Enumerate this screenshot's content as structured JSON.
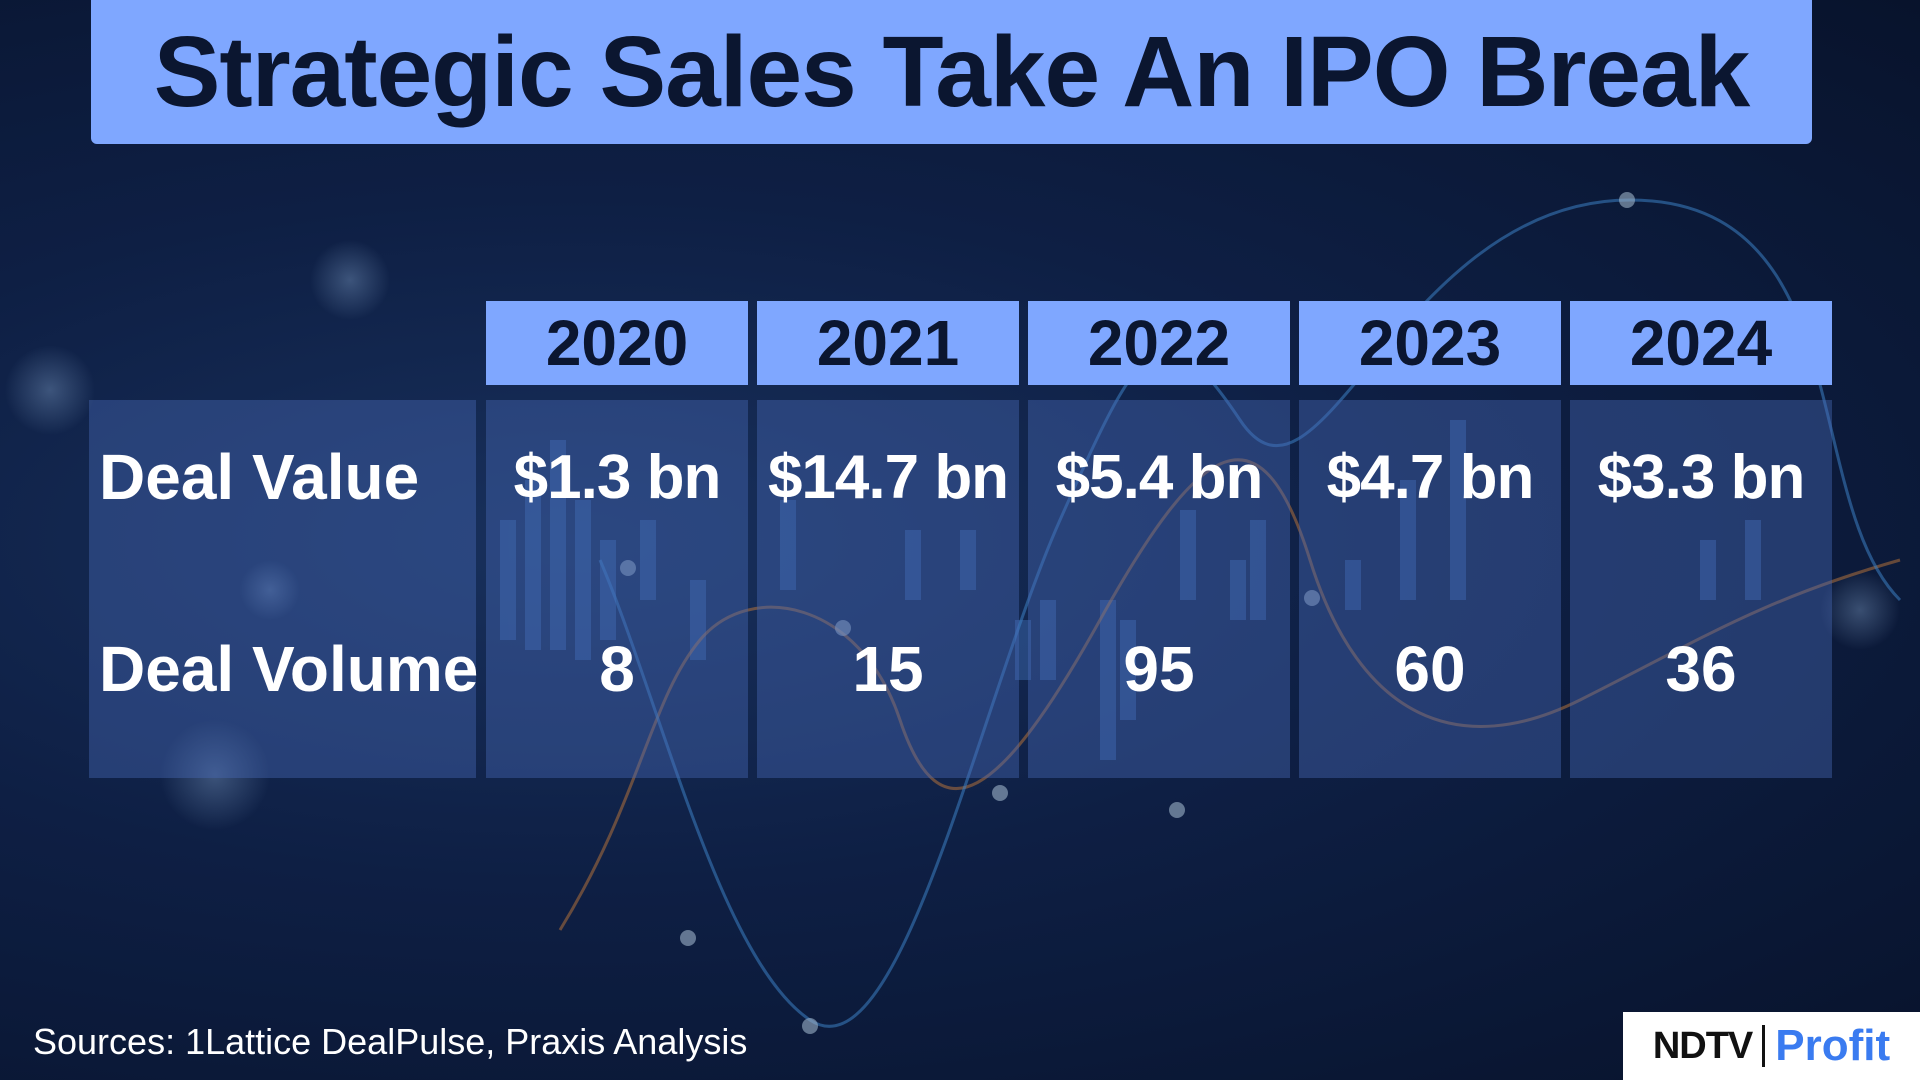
{
  "title": "Strategic Sales Take An IPO Break",
  "chart_data": {
    "type": "table",
    "title": "Strategic Sales Take An IPO Break",
    "columns": [
      "2020",
      "2021",
      "2022",
      "2023",
      "2024"
    ],
    "rows": [
      {
        "label": "Deal Value",
        "values": [
          "$1.3 bn",
          "$14.7 bn",
          "$5.4 bn",
          "$4.7 bn",
          "$3.3 bn"
        ],
        "numeric_usd_bn": [
          1.3,
          14.7,
          5.4,
          4.7,
          3.3
        ]
      },
      {
        "label": "Deal Volume",
        "values": [
          "8",
          "15",
          "95",
          "60",
          "36"
        ],
        "numeric": [
          8,
          15,
          95,
          60,
          36
        ]
      }
    ]
  },
  "table": {
    "years": [
      "2020",
      "2021",
      "2022",
      "2023",
      "2024"
    ],
    "row_labels": [
      "Deal Value",
      "Deal Volume"
    ],
    "deal_value": [
      "$1.3 bn",
      "$14.7 bn",
      "$5.4 bn",
      "$4.7 bn",
      "$3.3 bn"
    ],
    "deal_volume": [
      "8",
      "15",
      "95",
      "60",
      "36"
    ]
  },
  "footer": {
    "sources": "Sources: 1Lattice DealPulse, Praxis Analysis"
  },
  "logo": {
    "ndtv": "NDTV",
    "profit": "Profit"
  },
  "colors": {
    "accent": "#7fa7ff",
    "title_text": "#0b1630",
    "background": "#0e1f44",
    "profit_blue": "#3a7bf0"
  }
}
